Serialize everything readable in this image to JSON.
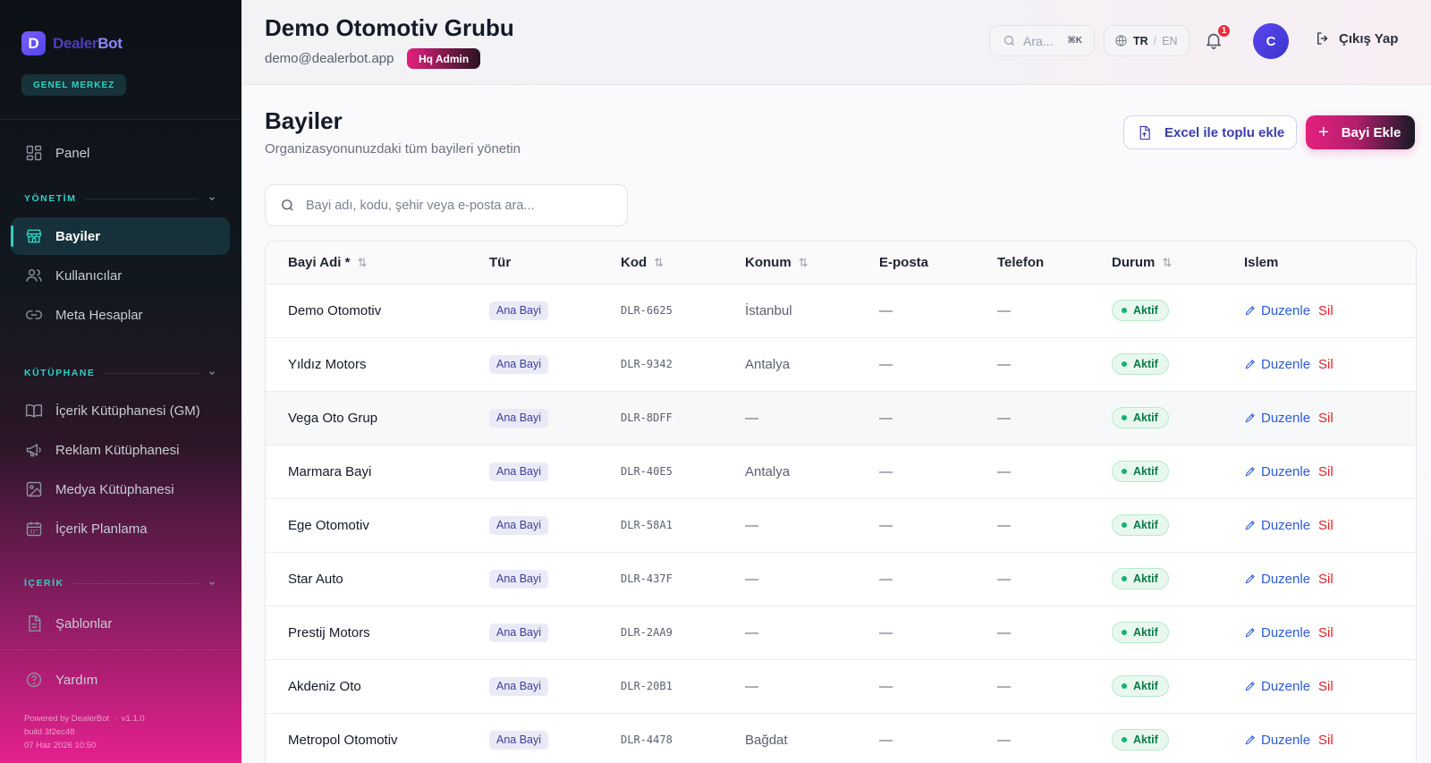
{
  "sidebar": {
    "brand": {
      "part1": "Dealer",
      "part2": "Bot",
      "logo_letter": "D"
    },
    "hq_label": "GENEL MERKEZ",
    "panel": "Panel",
    "sections": [
      {
        "title": "YÖNETİM",
        "items": [
          "Bayiler",
          "Kullanıcılar",
          "Meta Hesaplar"
        ]
      },
      {
        "title": "KÜTÜPHANE",
        "items": [
          "İçerik Kütüphanesi (GM)",
          "Reklam Kütüphanesi",
          "Medya Kütüphanesi",
          "İçerik Planlama"
        ]
      },
      {
        "title": "İÇERİK",
        "items": [
          "Şablonlar"
        ]
      }
    ],
    "help": "Yardım",
    "footer": {
      "powered": "Powered by DealerBot",
      "version": "v1.1.0",
      "build": "build 3f2ec48",
      "date": "07 Haz 2026 10:50"
    },
    "active_item": "Bayiler",
    "accent_color": "#2fd1c4"
  },
  "header": {
    "org_title": "Demo Otomotiv Grubu",
    "email": "demo@dealerbot.app",
    "role": "Hq Admin",
    "search_placeholder": "Ara...",
    "shortcut": "⌘K",
    "lang_active": "TR",
    "lang_sep": "/",
    "lang_other": "EN",
    "notif_count": "1",
    "avatar_initial": "C",
    "logout": "Çıkış Yap"
  },
  "page": {
    "title": "Bayiler",
    "subtitle": "Organizasyonunuzdaki tüm bayileri yönetin",
    "excel_button": "Excel ile toplu ekle",
    "add_button": "Bayi Ekle",
    "add_plus": "+",
    "search_placeholder": "Bayi adı, kodu, şehir veya e-posta ara..."
  },
  "table": {
    "headers": {
      "name": "Bayi Adi *",
      "type": "Tür",
      "code": "Kod",
      "location": "Konum",
      "email": "E-posta",
      "phone": "Telefon",
      "status": "Durum",
      "action": "Islem"
    },
    "sort_glyph": "⇅",
    "edit_label": "Duzenle",
    "delete_label": "Sil",
    "rows": [
      {
        "name": "Demo Otomotiv",
        "type": "Ana Bayi",
        "code": "DLR-6625",
        "location": "İstanbul",
        "email": "—",
        "phone": "—",
        "status": "Aktif"
      },
      {
        "name": "Yıldız Motors",
        "type": "Ana Bayi",
        "code": "DLR-9342",
        "location": "Antalya",
        "email": "—",
        "phone": "—",
        "status": "Aktif"
      },
      {
        "name": "Vega Oto Grup",
        "type": "Ana Bayi",
        "code": "DLR-8DFF",
        "location": "—",
        "email": "—",
        "phone": "—",
        "status": "Aktif"
      },
      {
        "name": "Marmara Bayi",
        "type": "Ana Bayi",
        "code": "DLR-40E5",
        "location": "Antalya",
        "email": "—",
        "phone": "—",
        "status": "Aktif"
      },
      {
        "name": "Ege Otomotiv",
        "type": "Ana Bayi",
        "code": "DLR-58A1",
        "location": "—",
        "email": "—",
        "phone": "—",
        "status": "Aktif"
      },
      {
        "name": "Star Auto",
        "type": "Ana Bayi",
        "code": "DLR-437F",
        "location": "—",
        "email": "—",
        "phone": "—",
        "status": "Aktif"
      },
      {
        "name": "Prestij Motors",
        "type": "Ana Bayi",
        "code": "DLR-2AA9",
        "location": "—",
        "email": "—",
        "phone": "—",
        "status": "Aktif"
      },
      {
        "name": "Akdeniz Oto",
        "type": "Ana Bayi",
        "code": "DLR-20B1",
        "location": "—",
        "email": "—",
        "phone": "—",
        "status": "Aktif"
      },
      {
        "name": "Metropol Otomotiv",
        "type": "Ana Bayi",
        "code": "DLR-4478",
        "location": "Bağdat",
        "email": "—",
        "phone": "—",
        "status": "Aktif"
      }
    ]
  },
  "colors": {
    "brand_pink": "#e3217f",
    "status_green": "#13b46a",
    "link_blue": "#2c5bd8",
    "delete_red": "#e0222d"
  }
}
